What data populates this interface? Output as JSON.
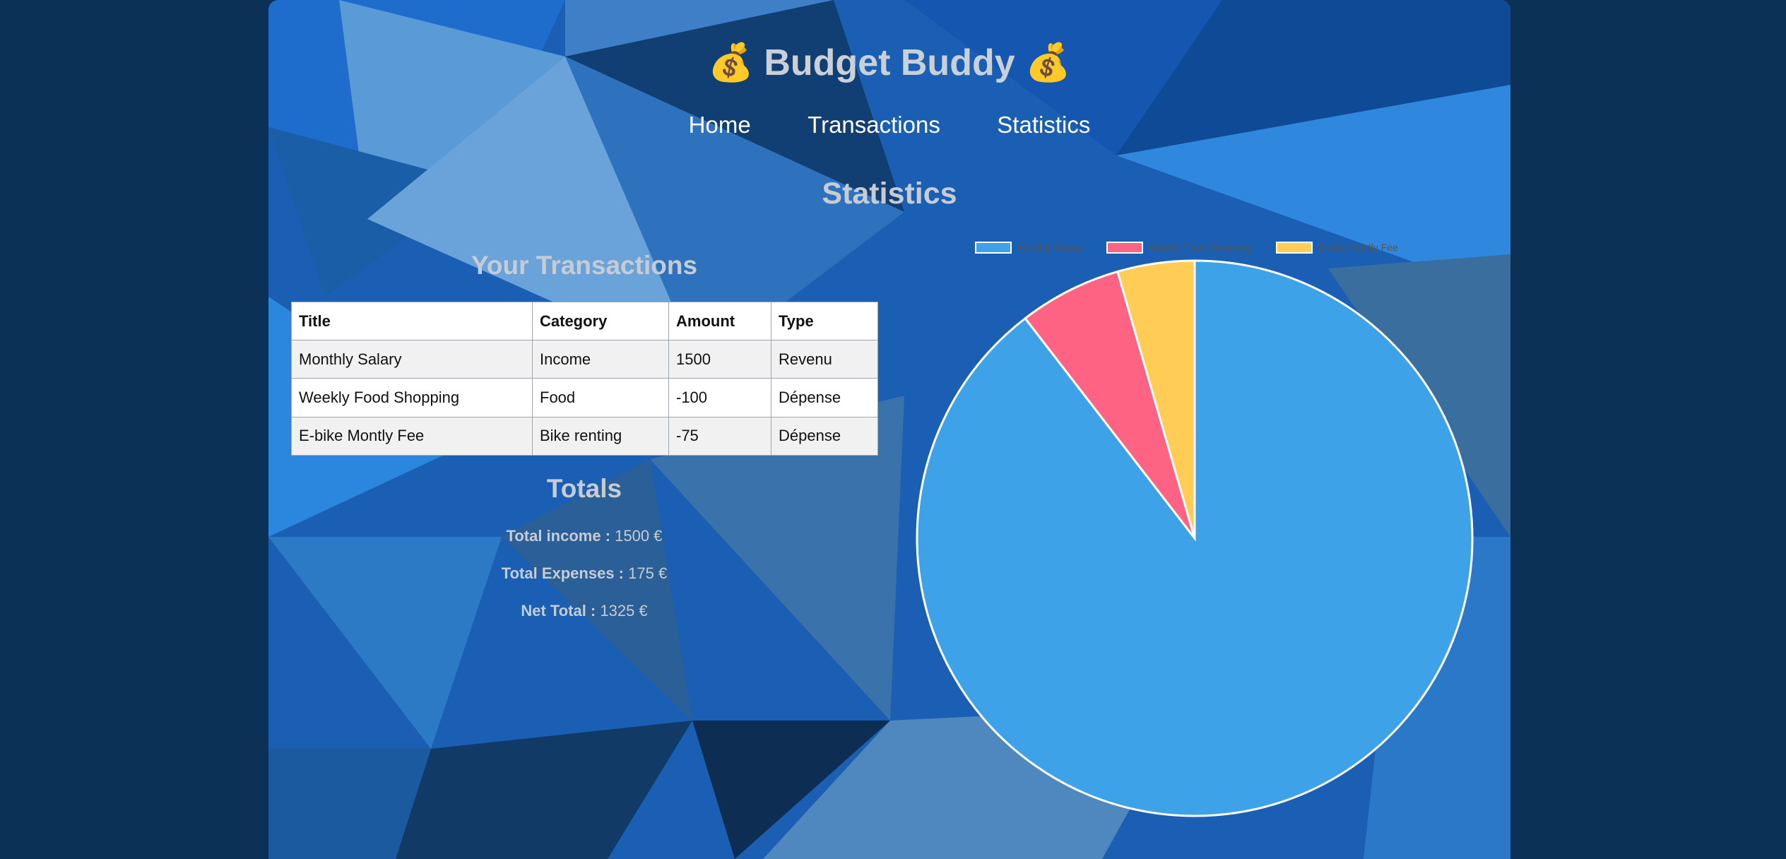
{
  "header": {
    "title": "💰 Budget Buddy 💰"
  },
  "nav": {
    "items": [
      "Home",
      "Transactions",
      "Statistics"
    ]
  },
  "page_title": "Statistics",
  "transactions": {
    "title": "Your Transactions",
    "columns": [
      "Title",
      "Category",
      "Amount",
      "Type"
    ],
    "rows": [
      [
        "Monthly Salary",
        "Income",
        "1500",
        "Revenu"
      ],
      [
        "Weekly Food Shopping",
        "Food",
        "-100",
        "Dépense"
      ],
      [
        "E-bike Montly Fee",
        "Bike renting",
        "-75",
        "Dépense"
      ]
    ]
  },
  "totals": {
    "title": "Totals",
    "income_label": "Total income :",
    "income_value": "1500 €",
    "expenses_label": "Total Expenses :",
    "expenses_value": "175 €",
    "net_label": "Net Total :",
    "net_value": "1325 €"
  },
  "colors": {
    "salary": "#3ea2e8",
    "food": "#ff6384",
    "ebike": "#ffcd56"
  },
  "chart_data": {
    "type": "pie",
    "categories": [
      "Monthly Salary",
      "Weekly Food Shopping",
      "E-bike Montly Fee"
    ],
    "values": [
      1500,
      100,
      75
    ],
    "legend": "top"
  }
}
